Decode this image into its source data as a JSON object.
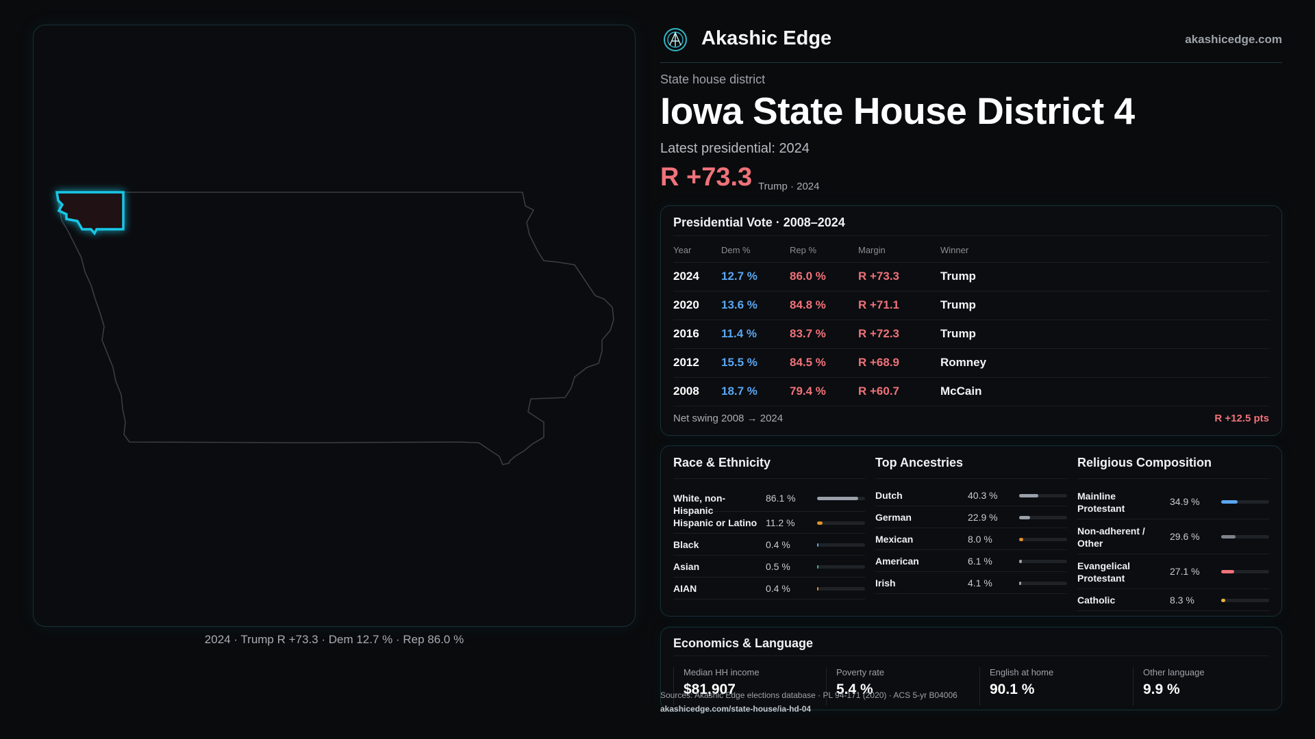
{
  "brand": {
    "name": "Akashic Edge",
    "url": "akashicedge.com"
  },
  "district": {
    "type_label": "State house district",
    "title": "Iowa State House District 4",
    "latest_label": "Latest presidential: 2024",
    "margin": "R +73.3",
    "margin_sub": "Trump · 2024"
  },
  "map": {
    "caption": "2024 · Trump R +73.3 · Dem 12.7 % · Rep 86.0 %",
    "highlight_color": "#19c7e6"
  },
  "presidential": {
    "title": "Presidential Vote · 2008–2024",
    "headers": [
      "Year",
      "Dem %",
      "Rep %",
      "Margin",
      "Winner"
    ],
    "rows": [
      {
        "year": "2024",
        "dem": "12.7 %",
        "rep": "86.0 %",
        "margin": "R +73.3",
        "winner": "Trump"
      },
      {
        "year": "2020",
        "dem": "13.6 %",
        "rep": "84.8 %",
        "margin": "R +71.1",
        "winner": "Trump"
      },
      {
        "year": "2016",
        "dem": "11.4 %",
        "rep": "83.7 %",
        "margin": "R +72.3",
        "winner": "Trump"
      },
      {
        "year": "2012",
        "dem": "15.5 %",
        "rep": "84.5 %",
        "margin": "R +68.9",
        "winner": "Romney"
      },
      {
        "year": "2008",
        "dem": "18.7 %",
        "rep": "79.4 %",
        "margin": "R +60.7",
        "winner": "McCain"
      }
    ],
    "swing_label": "Net swing 2008 → 2024",
    "swing_value": "R +12.5 pts"
  },
  "race": {
    "title": "Race & Ethnicity",
    "items": [
      {
        "label": "White, non-Hispanic",
        "value": "86.1 %",
        "fraction": 0.861,
        "color": "#9aa1aa"
      },
      {
        "label": "Hispanic or Latino",
        "value": "11.2 %",
        "fraction": 0.112,
        "color": "#e0902b"
      },
      {
        "label": "Black",
        "value": "0.4 %",
        "fraction": 0.004,
        "color": "#5aa6f2"
      },
      {
        "label": "Asian",
        "value": "0.5 %",
        "fraction": 0.005,
        "color": "#3fb58a"
      },
      {
        "label": "AIAN",
        "value": "0.4 %",
        "fraction": 0.004,
        "color": "#e0902b"
      }
    ]
  },
  "ancestry": {
    "title": "Top Ancestries",
    "items": [
      {
        "label": "Dutch",
        "value": "40.3 %",
        "fraction": 0.403,
        "color": "#9aa1aa"
      },
      {
        "label": "German",
        "value": "22.9 %",
        "fraction": 0.229,
        "color": "#9aa1aa"
      },
      {
        "label": "Mexican",
        "value": "8.0 %",
        "fraction": 0.08,
        "color": "#e0902b"
      },
      {
        "label": "American",
        "value": "6.1 %",
        "fraction": 0.061,
        "color": "#9aa1aa"
      },
      {
        "label": "Irish",
        "value": "4.1 %",
        "fraction": 0.041,
        "color": "#9aa1aa"
      }
    ]
  },
  "religion": {
    "title": "Religious Composition",
    "items": [
      {
        "label": "Mainline Protestant",
        "value": "34.9 %",
        "fraction": 0.349,
        "color": "#5aa6f2"
      },
      {
        "label": "Non-adherent / Other",
        "value": "29.6 %",
        "fraction": 0.296,
        "color": "#7e848c"
      },
      {
        "label": "Evangelical Protestant",
        "value": "27.1 %",
        "fraction": 0.271,
        "color": "#f0727a"
      },
      {
        "label": "Catholic",
        "value": "8.3 %",
        "fraction": 0.083,
        "color": "#e8b339"
      }
    ]
  },
  "economics": {
    "title": "Economics & Language",
    "items": [
      {
        "label": "Median HH income",
        "value": "$81,907"
      },
      {
        "label": "Poverty rate",
        "value": "5.4 %"
      },
      {
        "label": "English at home",
        "value": "90.1 %"
      },
      {
        "label": "Other language",
        "value": "9.9 %"
      }
    ]
  },
  "source": {
    "line": "Sources: Akashic Edge elections database · PL 94-171 (2020) · ACS 5-yr B04006",
    "url": "akashicedge.com/state-house/ia-hd-04"
  }
}
